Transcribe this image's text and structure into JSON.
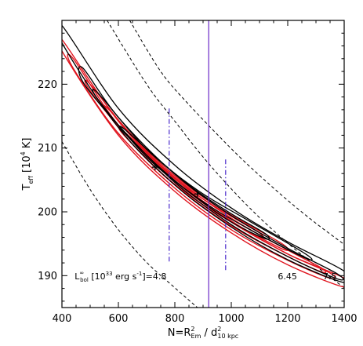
{
  "chart_data": {
    "type": "line",
    "title": "",
    "xlabel": "N=R_Em^2 / d_10 kpc^2",
    "ylabel": "T_eff [10^4 K]",
    "xlim": [
      400,
      1400
    ],
    "ylim": [
      185,
      230
    ],
    "xticks": [
      400,
      600,
      800,
      1000,
      1200,
      1400
    ],
    "yticks": [
      190,
      200,
      210,
      220
    ],
    "grid": false,
    "legend": "none",
    "colors": {
      "black_contour": "#000000",
      "red_contour": "#e0141e",
      "dashed_curve": "#000000",
      "vertical_line": "#6a28c8",
      "dashdot_line": "#4a2acc"
    },
    "dashed_luminosity_curves": [
      {
        "label": "L_bol^∞ [10^33 erg s^-1]=4.8",
        "points": [
          [
            400,
            211
          ],
          [
            500,
            203.5
          ],
          [
            600,
            197.2
          ],
          [
            700,
            192.1
          ],
          [
            800,
            188.1
          ],
          [
            880,
            185
          ]
        ]
      },
      {
        "label": "6.45",
        "points": [
          [
            560,
            230
          ],
          [
            700,
            220
          ],
          [
            800,
            214.2
          ],
          [
            900,
            208.6
          ],
          [
            1000,
            203.6
          ],
          [
            1100,
            199.1
          ],
          [
            1200,
            195.1
          ],
          [
            1300,
            191.5
          ],
          [
            1400,
            188.1
          ]
        ]
      },
      {
        "label": "7.5",
        "points": [
          [
            640,
            230
          ],
          [
            750,
            222
          ],
          [
            850,
            216.8
          ],
          [
            1000,
            209.9
          ],
          [
            1100,
            205.7
          ],
          [
            1200,
            201.8
          ],
          [
            1300,
            198.2
          ],
          [
            1400,
            194.9
          ]
        ]
      }
    ],
    "black_contours": [
      {
        "upper": [
          [
            400,
            229.2
          ],
          [
            600,
            216.2
          ],
          [
            800,
            207.3
          ],
          [
            1000,
            200.6
          ],
          [
            1200,
            195.3
          ],
          [
            1400,
            190.7
          ]
        ],
        "lower": [
          [
            400,
            226.5
          ],
          [
            600,
            213.2
          ],
          [
            800,
            204.2
          ],
          [
            1000,
            197.6
          ],
          [
            1200,
            192.5
          ],
          [
            1400,
            188.9
          ]
        ]
      },
      {
        "upper": [
          [
            475,
            222.5
          ],
          [
            600,
            214.8
          ],
          [
            800,
            205.9
          ],
          [
            1000,
            199.4
          ],
          [
            1200,
            194.3
          ],
          [
            1375,
            190.3
          ]
        ],
        "lower": [
          [
            475,
            220.3
          ],
          [
            600,
            213.6
          ],
          [
            800,
            204.6
          ],
          [
            1000,
            198.0
          ],
          [
            1200,
            193.0
          ],
          [
            1375,
            189.5
          ]
        ]
      },
      {
        "upper": [
          [
            530,
            218.5
          ],
          [
            700,
            209.8
          ],
          [
            880,
            203.4
          ],
          [
            1050,
            198.9
          ],
          [
            1260,
            193.5
          ]
        ],
        "lower": [
          [
            530,
            217.5
          ],
          [
            700,
            208.6
          ],
          [
            880,
            202.2
          ],
          [
            1050,
            197.6
          ],
          [
            1260,
            192.8
          ]
        ]
      },
      {
        "upper": [
          [
            620,
            213.0
          ],
          [
            760,
            207.5
          ],
          [
            880,
            203.2
          ],
          [
            1000,
            199.7
          ],
          [
            1120,
            196.6
          ]
        ],
        "lower": [
          [
            620,
            212.4
          ],
          [
            760,
            206.4
          ],
          [
            880,
            202.1
          ],
          [
            1000,
            198.4
          ],
          [
            1120,
            195.8
          ]
        ]
      }
    ],
    "red_contours": [
      {
        "upper": [
          [
            400,
            227.0
          ],
          [
            600,
            214.2
          ],
          [
            800,
            205.2
          ],
          [
            1000,
            198.6
          ],
          [
            1200,
            193.4
          ],
          [
            1400,
            189.6
          ]
        ],
        "lower": [
          [
            400,
            225.2
          ],
          [
            600,
            212.0
          ],
          [
            800,
            203.2
          ],
          [
            1000,
            196.7
          ],
          [
            1200,
            191.7
          ],
          [
            1400,
            188.2
          ]
        ]
      },
      {
        "upper": [
          [
            440,
            224.0
          ],
          [
            600,
            213.6
          ],
          [
            800,
            204.9
          ],
          [
            1000,
            198.4
          ],
          [
            1200,
            193.4
          ],
          [
            1350,
            190.4
          ]
        ],
        "lower": [
          [
            440,
            222.5
          ],
          [
            600,
            212.3
          ],
          [
            800,
            203.7
          ],
          [
            1000,
            197.2
          ],
          [
            1200,
            192.4
          ],
          [
            1350,
            189.6
          ]
        ]
      },
      {
        "upper": [
          [
            500,
            220.0
          ],
          [
            650,
            211.7
          ],
          [
            800,
            205.4
          ],
          [
            1000,
            199.0
          ],
          [
            1200,
            194.0
          ],
          [
            1320,
            191.2
          ]
        ],
        "lower": [
          [
            500,
            219.0
          ],
          [
            650,
            210.6
          ],
          [
            800,
            204.2
          ],
          [
            1000,
            197.8
          ],
          [
            1200,
            193.0
          ],
          [
            1320,
            190.6
          ]
        ]
      },
      {
        "upper": [
          [
            560,
            216.3
          ],
          [
            700,
            209.6
          ],
          [
            850,
            203.9
          ],
          [
            1000,
            199.5
          ],
          [
            1180,
            195.0
          ]
        ],
        "lower": [
          [
            560,
            215.5
          ],
          [
            700,
            208.8
          ],
          [
            850,
            203.0
          ],
          [
            1000,
            198.5
          ],
          [
            1180,
            194.2
          ]
        ]
      },
      {
        "upper": [
          [
            620,
            212.6
          ],
          [
            760,
            206.6
          ],
          [
            880,
            202.6
          ],
          [
            1000,
            199.3
          ],
          [
            1100,
            196.7
          ]
        ],
        "lower": [
          [
            620,
            212.0
          ],
          [
            760,
            205.8
          ],
          [
            880,
            201.7
          ],
          [
            1000,
            198.4
          ],
          [
            1100,
            196.1
          ]
        ]
      }
    ],
    "vertical_line": {
      "x": 920,
      "y_range": [
        185,
        230
      ]
    },
    "dashdot_lines": [
      {
        "x": 780,
        "y_range": [
          192.2,
          216.2
        ]
      },
      {
        "x": 980,
        "y_range": [
          190.8,
          208.2
        ]
      }
    ],
    "markers": [
      {
        "x": 880,
        "y": 202.8,
        "shape": "plus"
      },
      {
        "x": 730,
        "y": 207.0,
        "shape": "plus"
      }
    ],
    "annotations": [
      {
        "text": "L_bol^∞ [10^33 erg s^-1]=4.8",
        "x": 445,
        "y": 189.4
      },
      {
        "text": "6.45",
        "x": 1165,
        "y": 189.4
      },
      {
        "text": "7.5",
        "x": 1325,
        "y": 189.4
      }
    ]
  }
}
